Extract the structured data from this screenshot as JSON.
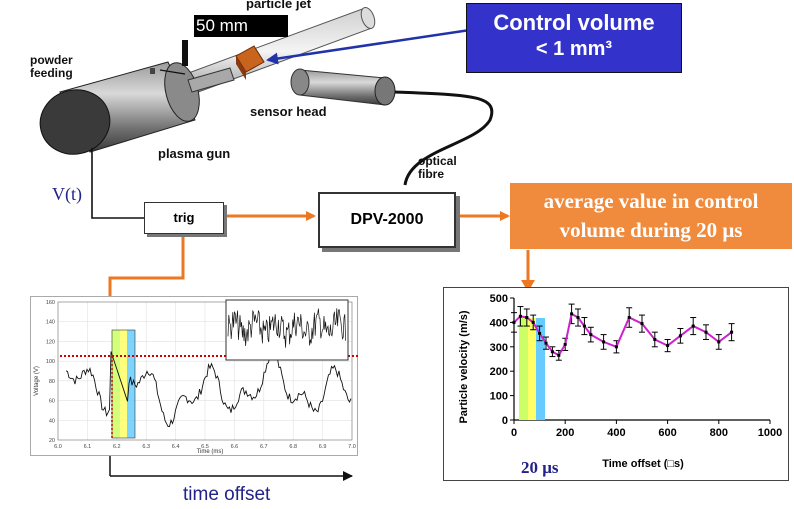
{
  "labels": {
    "scale_bar": "50 mm",
    "particle_jet": "particle jet",
    "powder_feeding": "powder\nfeeding",
    "sensor_head": "sensor head",
    "plasma_gun": "plasma gun",
    "optical_fibre": "optical\nfibre",
    "vt": "V(t)",
    "trig": "trig",
    "dpv": "DPV-2000",
    "time_offset": "time offset",
    "twenty_us": "20 μs"
  },
  "control_volume": {
    "line1": "Control volume",
    "line2": "< 1 mm³"
  },
  "average_box": {
    "line1": "average value in control",
    "line2": "volume during 20 μs"
  },
  "colors": {
    "control_box_bg": "#3333cc",
    "average_box_bg": "#f08a3c",
    "arrow_orange": "#ee7722",
    "arrow_blue": "#2233aa",
    "curve_magenta": "#cc22cc",
    "threshold_red": "#cc0000"
  },
  "left_chart": {
    "ylabel": "Voltage (V)",
    "xlabel": "Time (ms)",
    "y_ticks": [
      "160",
      "140",
      "120",
      "100",
      "80",
      "60",
      "40",
      "20"
    ],
    "x_ticks": [
      "6.0",
      "6.1",
      "6.2",
      "6.3",
      "6.4",
      "6.5",
      "6.6",
      "6.7",
      "6.8",
      "6.9",
      "7.0"
    ]
  },
  "chart_data": {
    "type": "line",
    "title": "",
    "xlabel": "Time offset (□s)",
    "ylabel": "Particle velocity (m/s)",
    "xlim": [
      0,
      1000
    ],
    "ylim": [
      0,
      500
    ],
    "x_ticks": [
      "0",
      "200",
      "400",
      "600",
      "800",
      "1000"
    ],
    "y_ticks": [
      "0",
      "100",
      "200",
      "300",
      "400",
      "500"
    ],
    "series": [
      {
        "x": [
          0,
          25,
          50,
          75,
          100,
          125,
          150,
          175,
          200,
          225,
          250,
          275,
          300,
          350,
          400,
          450,
          500,
          550,
          600,
          650,
          700,
          750,
          800,
          850
        ],
        "y": [
          400,
          425,
          420,
          400,
          355,
          315,
          280,
          265,
          310,
          435,
          420,
          385,
          350,
          320,
          300,
          420,
          395,
          330,
          305,
          345,
          385,
          360,
          320,
          360
        ],
        "err": [
          40,
          40,
          35,
          30,
          30,
          25,
          20,
          20,
          25,
          40,
          35,
          35,
          30,
          30,
          25,
          40,
          35,
          30,
          25,
          30,
          35,
          30,
          30,
          35
        ]
      }
    ]
  }
}
